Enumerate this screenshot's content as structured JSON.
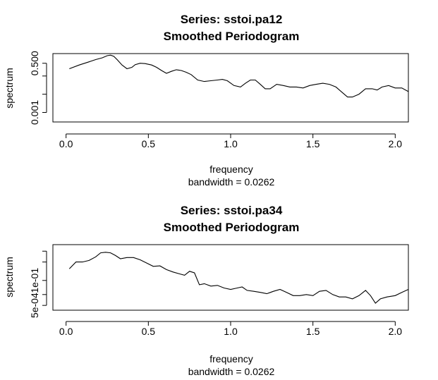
{
  "chart_data": [
    {
      "type": "line",
      "title_lines": [
        "Series: sstoi.pa12",
        "Smoothed Periodogram"
      ],
      "xlabel": "frequency",
      "sublabel": "bandwidth = 0.0262",
      "ylabel": "spectrum",
      "y_scale": "log",
      "xlim": [
        -0.08,
        2.08
      ],
      "ylim": [
        0.0003,
        1.7
      ],
      "x_ticks": [
        0.0,
        0.5,
        1.0,
        1.5,
        2.0
      ],
      "x_tick_labels": [
        "0.0",
        "0.5",
        "1.0",
        "1.5",
        "2.0"
      ],
      "y_ticks": [
        0.001,
        0.01,
        0.1,
        0.5
      ],
      "y_tick_labels": [
        "0.001",
        "",
        "",
        "0.500"
      ],
      "series": [
        {
          "x": [
            0.02,
            0.08,
            0.14,
            0.18,
            0.22,
            0.25,
            0.27,
            0.29,
            0.31,
            0.34,
            0.37,
            0.4,
            0.42,
            0.45,
            0.48,
            0.52,
            0.55,
            0.58,
            0.61,
            0.64,
            0.67,
            0.7,
            0.73,
            0.76,
            0.8,
            0.84,
            0.88,
            0.92,
            0.95,
            0.98,
            1.02,
            1.06,
            1.09,
            1.12,
            1.15,
            1.18,
            1.21,
            1.24,
            1.28,
            1.32,
            1.36,
            1.4,
            1.44,
            1.48,
            1.52,
            1.56,
            1.6,
            1.64,
            1.68,
            1.71,
            1.74,
            1.78,
            1.82,
            1.86,
            1.89,
            1.92,
            1.96,
            2.0,
            2.04,
            2.08
          ],
          "y": [
            0.25,
            0.4,
            0.6,
            0.8,
            1.0,
            1.3,
            1.4,
            1.2,
            0.8,
            0.4,
            0.25,
            0.3,
            0.42,
            0.5,
            0.48,
            0.4,
            0.3,
            0.2,
            0.14,
            0.18,
            0.22,
            0.2,
            0.16,
            0.12,
            0.06,
            0.05,
            0.055,
            0.06,
            0.065,
            0.055,
            0.03,
            0.025,
            0.04,
            0.06,
            0.06,
            0.035,
            0.02,
            0.02,
            0.035,
            0.03,
            0.025,
            0.025,
            0.022,
            0.03,
            0.035,
            0.04,
            0.035,
            0.025,
            0.012,
            0.007,
            0.007,
            0.01,
            0.02,
            0.02,
            0.017,
            0.025,
            0.03,
            0.022,
            0.022,
            0.014
          ]
        }
      ]
    },
    {
      "type": "line",
      "title_lines": [
        "Series: sstoi.pa34",
        "Smoothed Periodogram"
      ],
      "xlabel": "frequency",
      "sublabel": "bandwidth = 0.0262",
      "ylabel": "spectrum",
      "y_scale": "log",
      "xlim": [
        -0.08,
        2.08
      ],
      "ylim": [
        0.00018,
        200
      ],
      "x_ticks": [
        0.0,
        0.5,
        1.0,
        1.5,
        2.0
      ],
      "x_tick_labels": [
        "0.0",
        "0.5",
        "1.0",
        "1.5",
        "2.0"
      ],
      "y_ticks": [
        0.0005,
        0.005,
        0.1,
        5,
        50
      ],
      "y_tick_labels": [
        "5e-04",
        "",
        "1e-01",
        "",
        ""
      ],
      "series": [
        {
          "x": [
            0.02,
            0.06,
            0.1,
            0.14,
            0.18,
            0.21,
            0.24,
            0.27,
            0.3,
            0.33,
            0.37,
            0.41,
            0.45,
            0.49,
            0.53,
            0.57,
            0.61,
            0.65,
            0.69,
            0.72,
            0.75,
            0.78,
            0.81,
            0.84,
            0.88,
            0.92,
            0.96,
            1.0,
            1.04,
            1.07,
            1.1,
            1.14,
            1.18,
            1.22,
            1.26,
            1.3,
            1.34,
            1.38,
            1.42,
            1.46,
            1.5,
            1.54,
            1.58,
            1.62,
            1.66,
            1.7,
            1.74,
            1.78,
            1.82,
            1.85,
            1.88,
            1.91,
            1.95,
            2.0,
            2.04,
            2.08
          ],
          "y": [
            1.2,
            5,
            5,
            7,
            15,
            35,
            40,
            35,
            20,
            10,
            13,
            13,
            8,
            4,
            2,
            2.2,
            1.0,
            0.6,
            0.4,
            0.3,
            0.7,
            0.5,
            0.04,
            0.05,
            0.03,
            0.035,
            0.02,
            0.015,
            0.02,
            0.025,
            0.012,
            0.01,
            0.008,
            0.006,
            0.01,
            0.015,
            0.008,
            0.004,
            0.004,
            0.005,
            0.004,
            0.01,
            0.012,
            0.005,
            0.003,
            0.003,
            0.002,
            0.004,
            0.012,
            0.004,
            0.0008,
            0.002,
            0.003,
            0.004,
            0.008,
            0.015
          ]
        }
      ]
    }
  ]
}
